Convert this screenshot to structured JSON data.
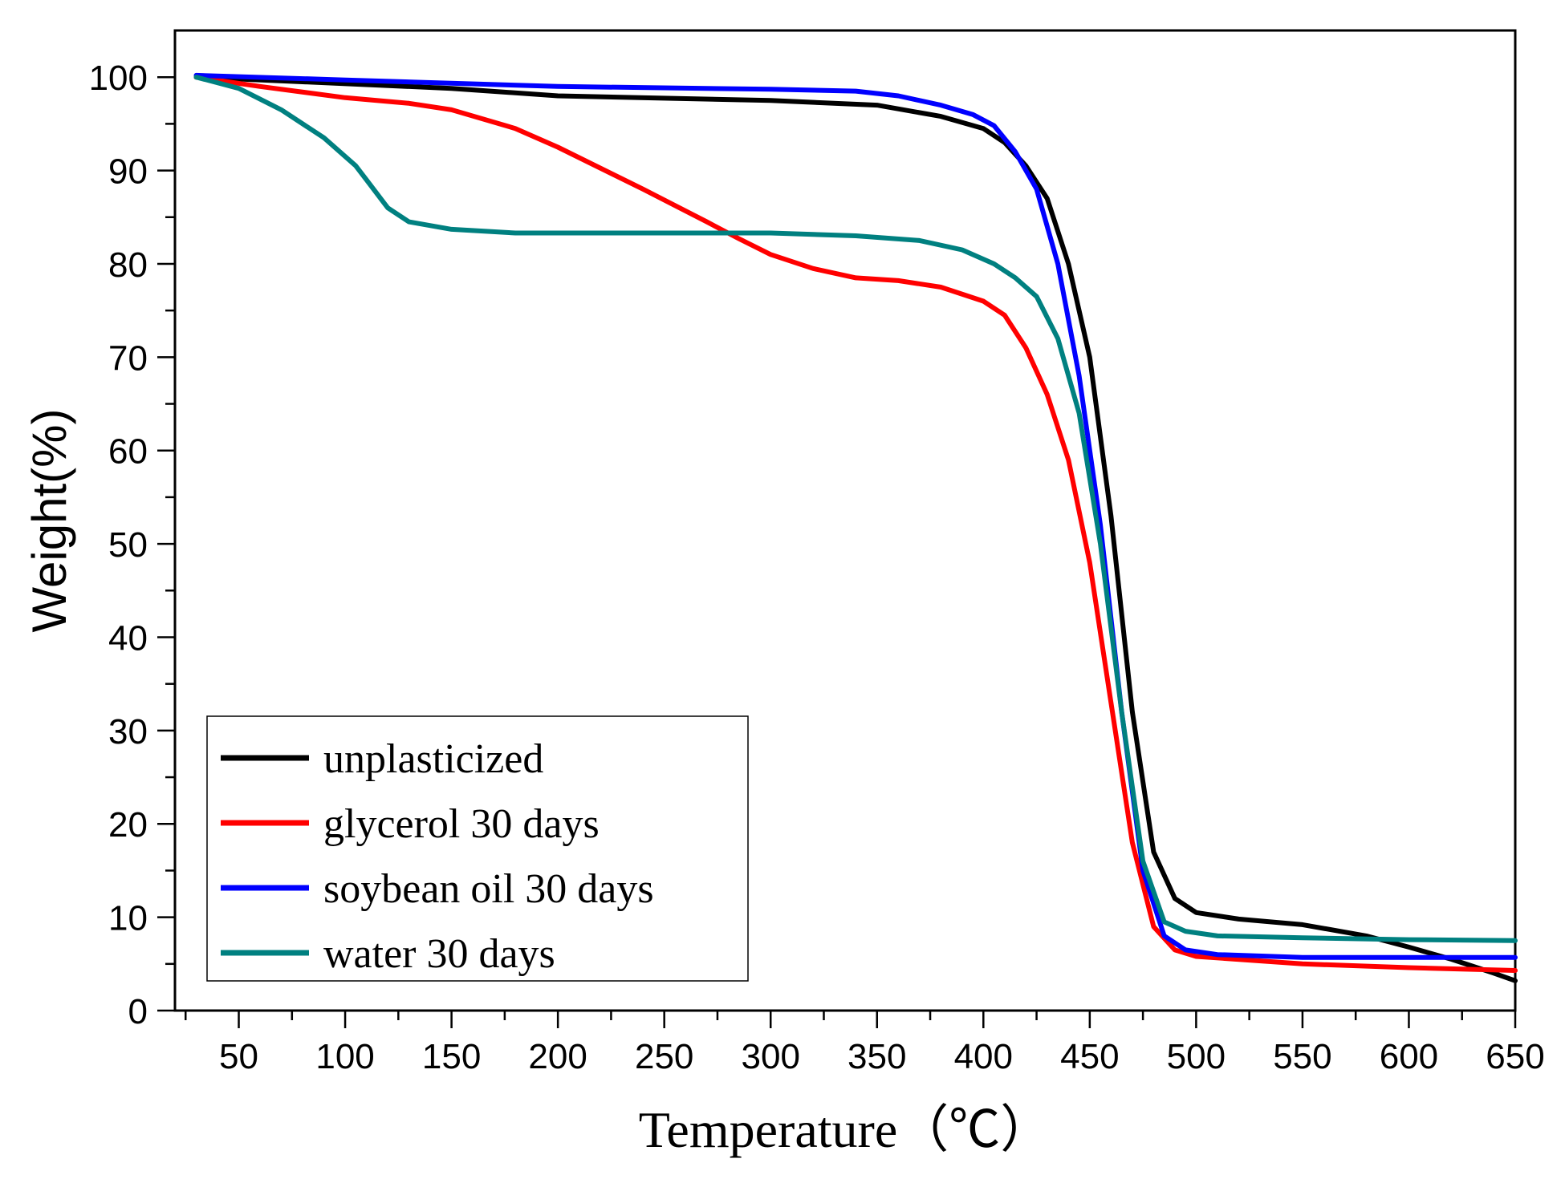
{
  "chart_data": {
    "type": "line",
    "title": "",
    "xlabel": "Temperature（℃）",
    "ylabel": "Weight(%)",
    "xlim": [
      20,
      650
    ],
    "ylim": [
      0,
      105
    ],
    "xticks": [
      50,
      100,
      150,
      200,
      250,
      300,
      350,
      400,
      450,
      500,
      550,
      600,
      650
    ],
    "yticks": [
      0,
      10,
      20,
      30,
      40,
      50,
      60,
      70,
      80,
      90,
      100
    ],
    "grid": false,
    "legend_position": "bottom-left",
    "series": [
      {
        "name": "unplasticized",
        "color": "#000000",
        "points": [
          [
            30,
            100
          ],
          [
            80,
            99.5
          ],
          [
            150,
            98.8
          ],
          [
            200,
            98
          ],
          [
            300,
            97.5
          ],
          [
            350,
            97
          ],
          [
            380,
            95.8
          ],
          [
            400,
            94.5
          ],
          [
            410,
            93
          ],
          [
            420,
            90.5
          ],
          [
            430,
            87
          ],
          [
            440,
            80
          ],
          [
            450,
            70
          ],
          [
            460,
            53
          ],
          [
            470,
            32
          ],
          [
            480,
            17
          ],
          [
            490,
            12
          ],
          [
            500,
            10.5
          ],
          [
            520,
            9.8
          ],
          [
            550,
            9.2
          ],
          [
            580,
            8
          ],
          [
            600,
            6.8
          ],
          [
            620,
            5.5
          ],
          [
            640,
            4
          ],
          [
            650,
            3.2
          ]
        ]
      },
      {
        "name": "glycerol 30 days",
        "color": "#ff0000",
        "points": [
          [
            30,
            100
          ],
          [
            60,
            99
          ],
          [
            100,
            97.8
          ],
          [
            130,
            97.2
          ],
          [
            150,
            96.5
          ],
          [
            180,
            94.5
          ],
          [
            200,
            92.5
          ],
          [
            240,
            88
          ],
          [
            270,
            84.5
          ],
          [
            285,
            82.7
          ],
          [
            300,
            81
          ],
          [
            320,
            79.5
          ],
          [
            340,
            78.5
          ],
          [
            360,
            78.2
          ],
          [
            380,
            77.5
          ],
          [
            400,
            76
          ],
          [
            410,
            74.5
          ],
          [
            420,
            71
          ],
          [
            430,
            66
          ],
          [
            440,
            59
          ],
          [
            450,
            48
          ],
          [
            460,
            33
          ],
          [
            470,
            18
          ],
          [
            480,
            9
          ],
          [
            490,
            6.5
          ],
          [
            500,
            5.8
          ],
          [
            550,
            5
          ],
          [
            600,
            4.6
          ],
          [
            650,
            4.3
          ]
        ]
      },
      {
        "name": "soybean oil 30 days",
        "color": "#0000ff",
        "points": [
          [
            30,
            100.2
          ],
          [
            100,
            99.7
          ],
          [
            200,
            99
          ],
          [
            300,
            98.7
          ],
          [
            340,
            98.5
          ],
          [
            360,
            98
          ],
          [
            380,
            97
          ],
          [
            395,
            96
          ],
          [
            405,
            94.8
          ],
          [
            415,
            92
          ],
          [
            425,
            88
          ],
          [
            435,
            80
          ],
          [
            445,
            68
          ],
          [
            455,
            52
          ],
          [
            465,
            32
          ],
          [
            475,
            15
          ],
          [
            485,
            8
          ],
          [
            495,
            6.5
          ],
          [
            510,
            6
          ],
          [
            550,
            5.7
          ],
          [
            600,
            5.7
          ],
          [
            650,
            5.7
          ]
        ]
      },
      {
        "name": "water 30 days",
        "color": "#008080",
        "points": [
          [
            30,
            100
          ],
          [
            50,
            98.8
          ],
          [
            70,
            96.5
          ],
          [
            90,
            93.5
          ],
          [
            105,
            90.5
          ],
          [
            110,
            89
          ],
          [
            120,
            86
          ],
          [
            130,
            84.5
          ],
          [
            150,
            83.7
          ],
          [
            180,
            83.3
          ],
          [
            250,
            83.3
          ],
          [
            300,
            83.3
          ],
          [
            340,
            83
          ],
          [
            370,
            82.5
          ],
          [
            390,
            81.5
          ],
          [
            405,
            80
          ],
          [
            415,
            78.5
          ],
          [
            425,
            76.5
          ],
          [
            435,
            72
          ],
          [
            445,
            64
          ],
          [
            455,
            50
          ],
          [
            465,
            32
          ],
          [
            475,
            16
          ],
          [
            485,
            9.5
          ],
          [
            495,
            8.5
          ],
          [
            510,
            8
          ],
          [
            550,
            7.8
          ],
          [
            600,
            7.6
          ],
          [
            650,
            7.5
          ]
        ]
      }
    ]
  }
}
